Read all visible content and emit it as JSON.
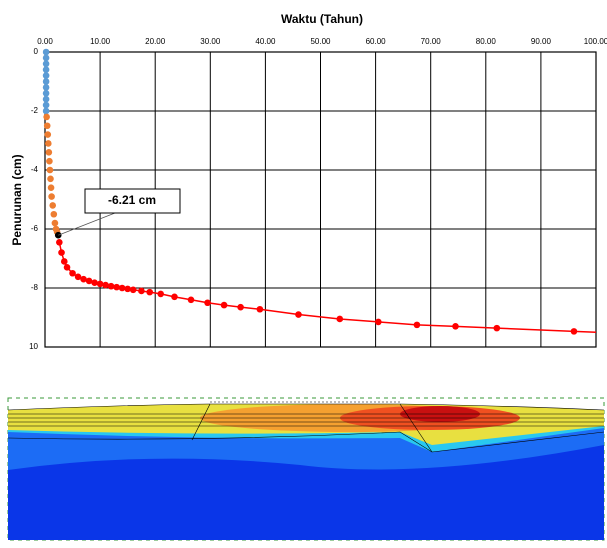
{
  "chart_data": {
    "type": "scatter",
    "title": "Waktu (Tahun)",
    "y_label": "Penurunan (cm)",
    "xlim": [
      0,
      100
    ],
    "xticks": [
      {
        "value": 0,
        "label": "0.00"
      },
      {
        "value": 10,
        "label": "10.00"
      },
      {
        "value": 20,
        "label": "20.00"
      },
      {
        "value": 30,
        "label": "30.00"
      },
      {
        "value": 40,
        "label": "40.00"
      },
      {
        "value": 50,
        "label": "50.00"
      },
      {
        "value": 60,
        "label": "60.00"
      },
      {
        "value": 70,
        "label": "70.00"
      },
      {
        "value": 80,
        "label": "80.00"
      },
      {
        "value": 90,
        "label": "90.00"
      },
      {
        "value": 100,
        "label": "100.00"
      }
    ],
    "ylim": [
      0,
      -10
    ],
    "yticks": [
      0,
      -2,
      -4,
      -6,
      -8,
      {
        "value": -10,
        "label": "10"
      }
    ],
    "grid": true,
    "series": [
      {
        "color": "#5b9bd5",
        "line": false,
        "x": [
          0.2,
          0.2,
          0.2,
          0.2,
          0.2,
          0.2,
          0.2,
          0.2,
          0.2,
          0.2,
          0.2
        ],
        "values": [
          0,
          -0.2,
          -0.4,
          -0.6,
          -0.8,
          -1.0,
          -1.2,
          -1.4,
          -1.6,
          -1.8,
          -2.0
        ]
      },
      {
        "color": "#ed7d31",
        "line": false,
        "x": [
          0.3,
          0.4,
          0.5,
          0.6,
          0.7,
          0.8,
          0.9,
          1.0,
          1.1,
          1.2,
          1.4,
          1.6,
          1.8,
          2.0,
          2.2
        ],
        "values": [
          -2.2,
          -2.5,
          -2.8,
          -3.1,
          -3.4,
          -3.7,
          -4.0,
          -4.3,
          -4.6,
          -4.9,
          -5.2,
          -5.5,
          -5.8,
          -6.0,
          -6.1
        ]
      },
      {
        "color": "#000000",
        "line": false,
        "x": [
          2.4
        ],
        "values": [
          -6.21
        ]
      },
      {
        "color": "#ff0000",
        "line": true,
        "x": [
          2.6,
          3,
          3.5,
          4,
          5,
          6,
          7,
          8,
          9,
          10,
          11,
          12,
          13,
          14,
          15,
          16,
          17.5,
          19,
          21,
          23.5,
          26.5,
          29.5,
          32.5,
          35.5,
          39,
          46,
          53.5,
          60.5,
          67.5,
          74.5,
          82,
          96,
          100
        ],
        "values": [
          -6.45,
          -6.8,
          -7.1,
          -7.3,
          -7.5,
          -7.62,
          -7.7,
          -7.76,
          -7.82,
          -7.86,
          -7.9,
          -7.94,
          -7.97,
          -8.0,
          -8.03,
          -8.06,
          -8.1,
          -8.14,
          -8.2,
          -8.3,
          -8.4,
          -8.5,
          -8.58,
          -8.65,
          -8.72,
          -8.9,
          -9.05,
          -9.15,
          -9.25,
          -9.3,
          -9.36,
          -9.47,
          -9.5
        ],
        "markers_until": 96
      }
    ],
    "annotation": {
      "text": "-6.21 cm",
      "series": 2,
      "index": 0
    }
  }
}
